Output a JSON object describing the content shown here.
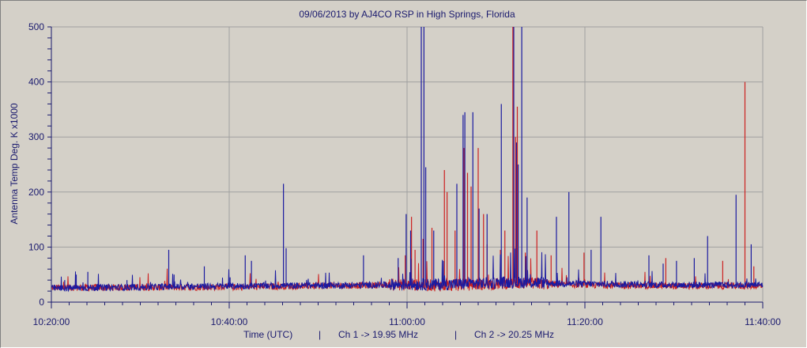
{
  "chart_data": {
    "type": "line",
    "title": "09/06/2013  by  AJ4CO RSP  in  High Springs, Florida",
    "ylabel": "Antenna Temp Deg. K x1000",
    "xlabel": "Time (UTC)",
    "footer_sep": "|",
    "channels": [
      "Ch 1 -> 19.95 MHz",
      "Ch 2 -> 20.25 MHz"
    ],
    "ylim": [
      0,
      500
    ],
    "yticks": [
      "0",
      "100",
      "200",
      "300",
      "400",
      "500"
    ],
    "xticks": [
      "10:20:00",
      "10:40:00",
      "11:00:00",
      "11:20:00",
      "11:40:00"
    ],
    "x_range_minutes": [
      0,
      80
    ],
    "grid": true,
    "colors": {
      "ch1": "#cc2020",
      "ch2": "#1a1aa0",
      "grid": "#a0a0a0",
      "plot_bg": "#d4d0c8"
    },
    "series": [
      {
        "name": "Ch 1 -> 19.95 MHz",
        "color": "#cc2020",
        "baseline": [
          [
            0,
            25
          ],
          [
            20,
            26
          ],
          [
            38,
            30
          ],
          [
            44,
            28
          ],
          [
            52,
            32
          ],
          [
            60,
            30
          ],
          [
            70,
            28
          ],
          [
            80,
            28
          ]
        ],
        "spikes": [
          [
            39.8,
            85
          ],
          [
            40.5,
            155
          ],
          [
            40.9,
            95
          ],
          [
            41.8,
            115
          ],
          [
            42.8,
            135
          ],
          [
            44.2,
            240
          ],
          [
            44.5,
            200
          ],
          [
            45.4,
            130
          ],
          [
            46.4,
            280
          ],
          [
            46.8,
            235
          ],
          [
            47.2,
            210
          ],
          [
            48.0,
            280
          ],
          [
            48.6,
            160
          ],
          [
            49.0,
            105
          ],
          [
            50.5,
            95
          ],
          [
            51.0,
            130
          ],
          [
            51.9,
            500
          ],
          [
            52.2,
            300
          ],
          [
            52.4,
            355
          ],
          [
            53.3,
            90
          ],
          [
            54.6,
            130
          ],
          [
            56.2,
            85
          ],
          [
            59.9,
            90
          ],
          [
            69.1,
            80
          ],
          [
            75.5,
            75
          ],
          [
            78.0,
            400
          ],
          [
            79.0,
            65
          ]
        ]
      },
      {
        "name": "Ch 2 -> 20.25 MHz",
        "color": "#1a1aa0",
        "baseline": [
          [
            0,
            24
          ],
          [
            20,
            28
          ],
          [
            38,
            30
          ],
          [
            44,
            30
          ],
          [
            52,
            34
          ],
          [
            60,
            32
          ],
          [
            70,
            30
          ],
          [
            80,
            30
          ]
        ],
        "spikes": [
          [
            1.5,
            40
          ],
          [
            2.8,
            50
          ],
          [
            4.1,
            55
          ],
          [
            8.5,
            40
          ],
          [
            13.2,
            95
          ],
          [
            13.8,
            50
          ],
          [
            17.2,
            65
          ],
          [
            20.1,
            45
          ],
          [
            21.8,
            85
          ],
          [
            22.5,
            75
          ],
          [
            26.1,
            215
          ],
          [
            26.4,
            98
          ],
          [
            35.1,
            85
          ],
          [
            39.0,
            80
          ],
          [
            39.9,
            160
          ],
          [
            40.4,
            130
          ],
          [
            41.6,
            500
          ],
          [
            41.9,
            500
          ],
          [
            42.1,
            245
          ],
          [
            43.0,
            130
          ],
          [
            44.1,
            75
          ],
          [
            45.6,
            215
          ],
          [
            46.3,
            340
          ],
          [
            46.5,
            345
          ],
          [
            47.4,
            345
          ],
          [
            48.1,
            170
          ],
          [
            49.0,
            160
          ],
          [
            50.6,
            360
          ],
          [
            52.0,
            500
          ],
          [
            52.3,
            290
          ],
          [
            52.5,
            250
          ],
          [
            52.9,
            500
          ],
          [
            53.5,
            190
          ],
          [
            56.8,
            155
          ],
          [
            58.2,
            200
          ],
          [
            60.7,
            95
          ],
          [
            61.8,
            155
          ],
          [
            67.2,
            85
          ],
          [
            68.8,
            70
          ],
          [
            70.3,
            75
          ],
          [
            72.3,
            80
          ],
          [
            73.8,
            120
          ],
          [
            77.0,
            195
          ],
          [
            78.7,
            105
          ]
        ]
      }
    ]
  }
}
